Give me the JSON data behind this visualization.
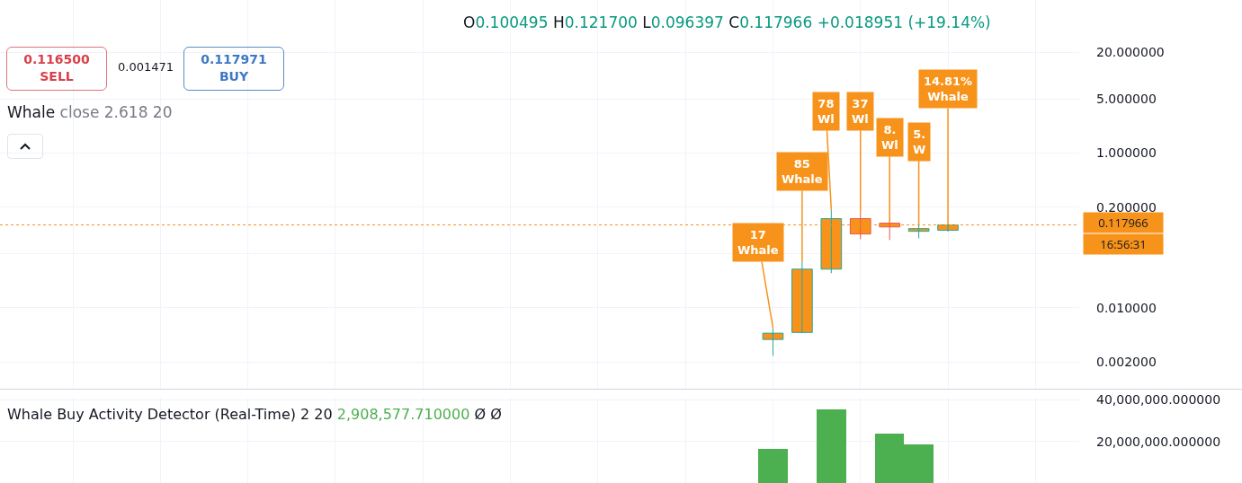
{
  "chart_data": [
    {
      "type": "candlestick",
      "subtitle": "O0.100495 H0.121700 L0.096397 C0.117966 +0.018951 (+19.14%)",
      "categories": [
        null,
        null,
        null,
        null,
        null,
        null,
        null,
        null,
        null,
        null,
        null,
        null,
        null,
        null,
        null,
        null,
        null,
        null,
        null,
        null,
        null,
        null,
        null,
        null,
        null,
        null,
        null,
        null,
        null,
        null,
        null,
        null,
        null,
        null,
        null,
        null,
        null
      ],
      "ohlc": [
        null,
        null,
        null,
        null,
        null,
        null,
        null,
        null,
        null,
        null,
        null,
        null,
        null,
        null,
        null,
        null,
        null,
        null,
        null,
        null,
        null,
        null,
        null,
        null,
        null,
        null,
        [
          0.0039,
          0.0055,
          0.0024,
          0.0047
        ],
        [
          0.0048,
          0.04,
          0.0047,
          0.0316
        ],
        [
          0.0316,
          0.185,
          0.028,
          0.142
        ],
        [
          0.142,
          0.175,
          0.077,
          0.09
        ],
        [
          0.124,
          0.127,
          0.075,
          0.111
        ],
        [
          0.0974,
          0.1205,
          0.079,
          0.1055
        ],
        [
          0.100495,
          0.1217,
          0.096397,
          0.117966
        ],
        null,
        null,
        null,
        null
      ],
      "color": "#f7931a",
      "log": "y",
      "ylim": [
        0.0009,
        95
      ],
      "yticks": [
        {
          "value": 20,
          "label": "20.000000"
        },
        {
          "value": 5,
          "label": "5.000000"
        },
        {
          "value": 1,
          "label": "1.000000"
        },
        {
          "value": 0.2,
          "label": "0.200000"
        },
        {
          "value": 0.05,
          "label": null
        },
        {
          "value": 0.01,
          "label": "0.010000"
        },
        {
          "value": 0.002,
          "label": "0.002000"
        }
      ],
      "grid": true,
      "tick_labels": "y",
      "ref_lines": [
        {
          "axis": "y",
          "value": 0.117966,
          "label": "0.117966",
          "color": "#f7931a",
          "line_style": "dotted"
        }
      ],
      "annotations": [
        "0.116500",
        "SELL",
        "0.001471",
        "0.117971",
        "BUY",
        "Whale close 2.618 20",
        "16:56:31",
        "17\nWhale",
        "85\nWhale",
        "78\nWl",
        "37\nWl",
        "8.\nWl",
        "5.\nW",
        "14.81%\nWhale"
      ]
    },
    {
      "type": "bar",
      "title": "Whale Buy Activity Detector (Real-Time) 2 20",
      "categories": [
        null,
        null,
        null,
        null,
        null,
        null,
        null,
        null,
        null,
        null,
        null,
        null,
        null,
        null,
        null,
        null,
        null,
        null,
        null,
        null,
        null,
        null,
        null,
        null,
        null,
        null,
        null,
        null,
        null,
        null,
        null,
        null,
        null,
        null,
        null,
        null,
        null
      ],
      "values": [
        null,
        null,
        null,
        null,
        null,
        null,
        null,
        null,
        null,
        null,
        null,
        null,
        null,
        null,
        null,
        null,
        null,
        null,
        null,
        null,
        null,
        null,
        null,
        null,
        null,
        null,
        16400000,
        null,
        35600000,
        null,
        23800000,
        18700000,
        null,
        null,
        null,
        null,
        null
      ],
      "color": "#4caf50",
      "ylim": [
        0,
        41000000
      ],
      "yticks": [
        {
          "value": 40000000,
          "label": "40,000,000.000000"
        },
        {
          "value": 20000000,
          "label": "20,000,000.000000"
        }
      ],
      "grid": true,
      "tick_labels": "y",
      "annotations": [
        "2,908,577.710000",
        "Ø Ø"
      ]
    }
  ]
}
